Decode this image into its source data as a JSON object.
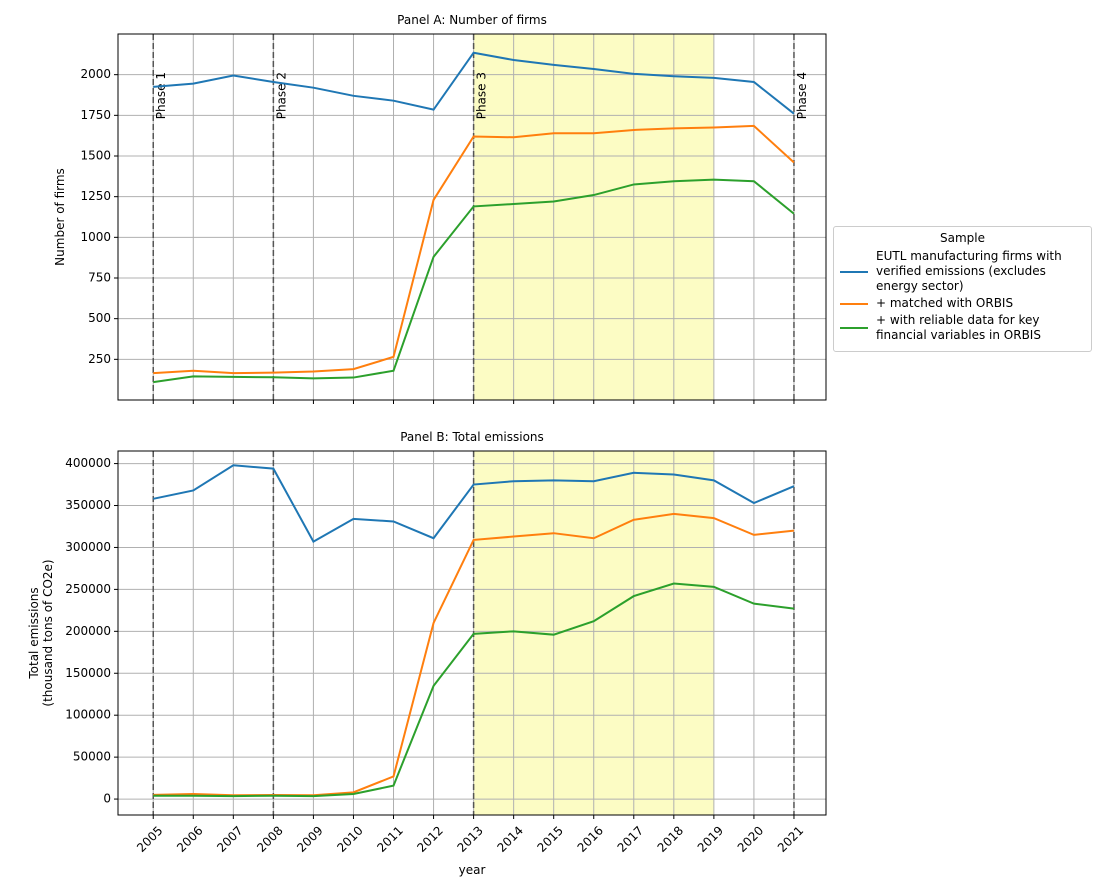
{
  "chart_data": [
    {
      "type": "line",
      "title": "Panel A: Number of firms",
      "ylabel": [
        "Number of firms"
      ],
      "x": [
        2005,
        2006,
        2007,
        2008,
        2009,
        2010,
        2011,
        2012,
        2013,
        2014,
        2015,
        2016,
        2017,
        2018,
        2019,
        2020,
        2021
      ],
      "series": [
        {
          "name": "EUTL manufacturing firms with verified emissions (excludes energy sector)",
          "color": "#1f77b4",
          "values": [
            1925,
            1945,
            1995,
            1955,
            1920,
            1870,
            1840,
            1785,
            2135,
            2090,
            2060,
            2035,
            2005,
            1990,
            1980,
            1955,
            1760
          ]
        },
        {
          "name": "+ matched with ORBIS",
          "color": "#ff7f0e",
          "values": [
            165,
            180,
            165,
            168,
            175,
            190,
            265,
            1230,
            1620,
            1615,
            1640,
            1640,
            1660,
            1670,
            1675,
            1685,
            1460
          ]
        },
        {
          "name": "+ with reliable data for key financial variables in ORBIS",
          "color": "#2ca02c",
          "values": [
            110,
            145,
            142,
            140,
            133,
            138,
            180,
            880,
            1190,
            1205,
            1220,
            1260,
            1325,
            1345,
            1355,
            1345,
            1145
          ]
        }
      ],
      "xlim": [
        2004.12,
        2021.8
      ],
      "ylim": [
        0,
        2250
      ],
      "xticks": [
        2005,
        2006,
        2007,
        2008,
        2009,
        2010,
        2011,
        2012,
        2013,
        2014,
        2015,
        2016,
        2017,
        2018,
        2019,
        2020,
        2021
      ],
      "yticks": [
        250,
        500,
        750,
        1000,
        1250,
        1500,
        1750,
        2000
      ],
      "grid": true,
      "span": [
        2013,
        2019
      ],
      "span_color": "#fcfcc4",
      "phases": [
        {
          "x": 2005,
          "label": "Phase 1"
        },
        {
          "x": 2008,
          "label": "Phase 2"
        },
        {
          "x": 2013,
          "label": "Phase 3"
        },
        {
          "x": 2021,
          "label": "Phase 4"
        }
      ],
      "legend": "right",
      "legend_title": "Sample"
    },
    {
      "type": "line",
      "title": "Panel B: Total emissions",
      "ylabel": [
        "Total emissions",
        "(thousand tons of CO2e)"
      ],
      "xlabel": "year",
      "x": [
        2005,
        2006,
        2007,
        2008,
        2009,
        2010,
        2011,
        2012,
        2013,
        2014,
        2015,
        2016,
        2017,
        2018,
        2019,
        2020,
        2021
      ],
      "series": [
        {
          "color": "#1f77b4",
          "values": [
            358000,
            368000,
            398000,
            394000,
            307000,
            334000,
            331000,
            311000,
            375000,
            379000,
            380000,
            379000,
            389000,
            387000,
            380000,
            353000,
            373000
          ]
        },
        {
          "color": "#ff7f0e",
          "values": [
            5000,
            6000,
            4500,
            4800,
            4500,
            8000,
            27000,
            210000,
            309000,
            313000,
            317000,
            311000,
            333000,
            340000,
            335000,
            315000,
            320000
          ]
        },
        {
          "color": "#2ca02c",
          "values": [
            4000,
            4000,
            3500,
            4000,
            3500,
            6000,
            16000,
            135000,
            197000,
            200000,
            196000,
            212000,
            242000,
            257000,
            253000,
            233000,
            227000
          ]
        }
      ],
      "xlim": [
        2004.12,
        2021.8
      ],
      "ylim": [
        -19000,
        415000
      ],
      "xticks": [
        2005,
        2006,
        2007,
        2008,
        2009,
        2010,
        2011,
        2012,
        2013,
        2014,
        2015,
        2016,
        2017,
        2018,
        2019,
        2020,
        2021
      ],
      "yticks": [
        0,
        50000,
        100000,
        150000,
        200000,
        250000,
        300000,
        350000,
        400000
      ],
      "grid": true,
      "span": [
        2013,
        2019
      ],
      "span_color": "#fcfcc4",
      "vlines": [
        2005,
        2008,
        2013,
        2021
      ]
    }
  ]
}
